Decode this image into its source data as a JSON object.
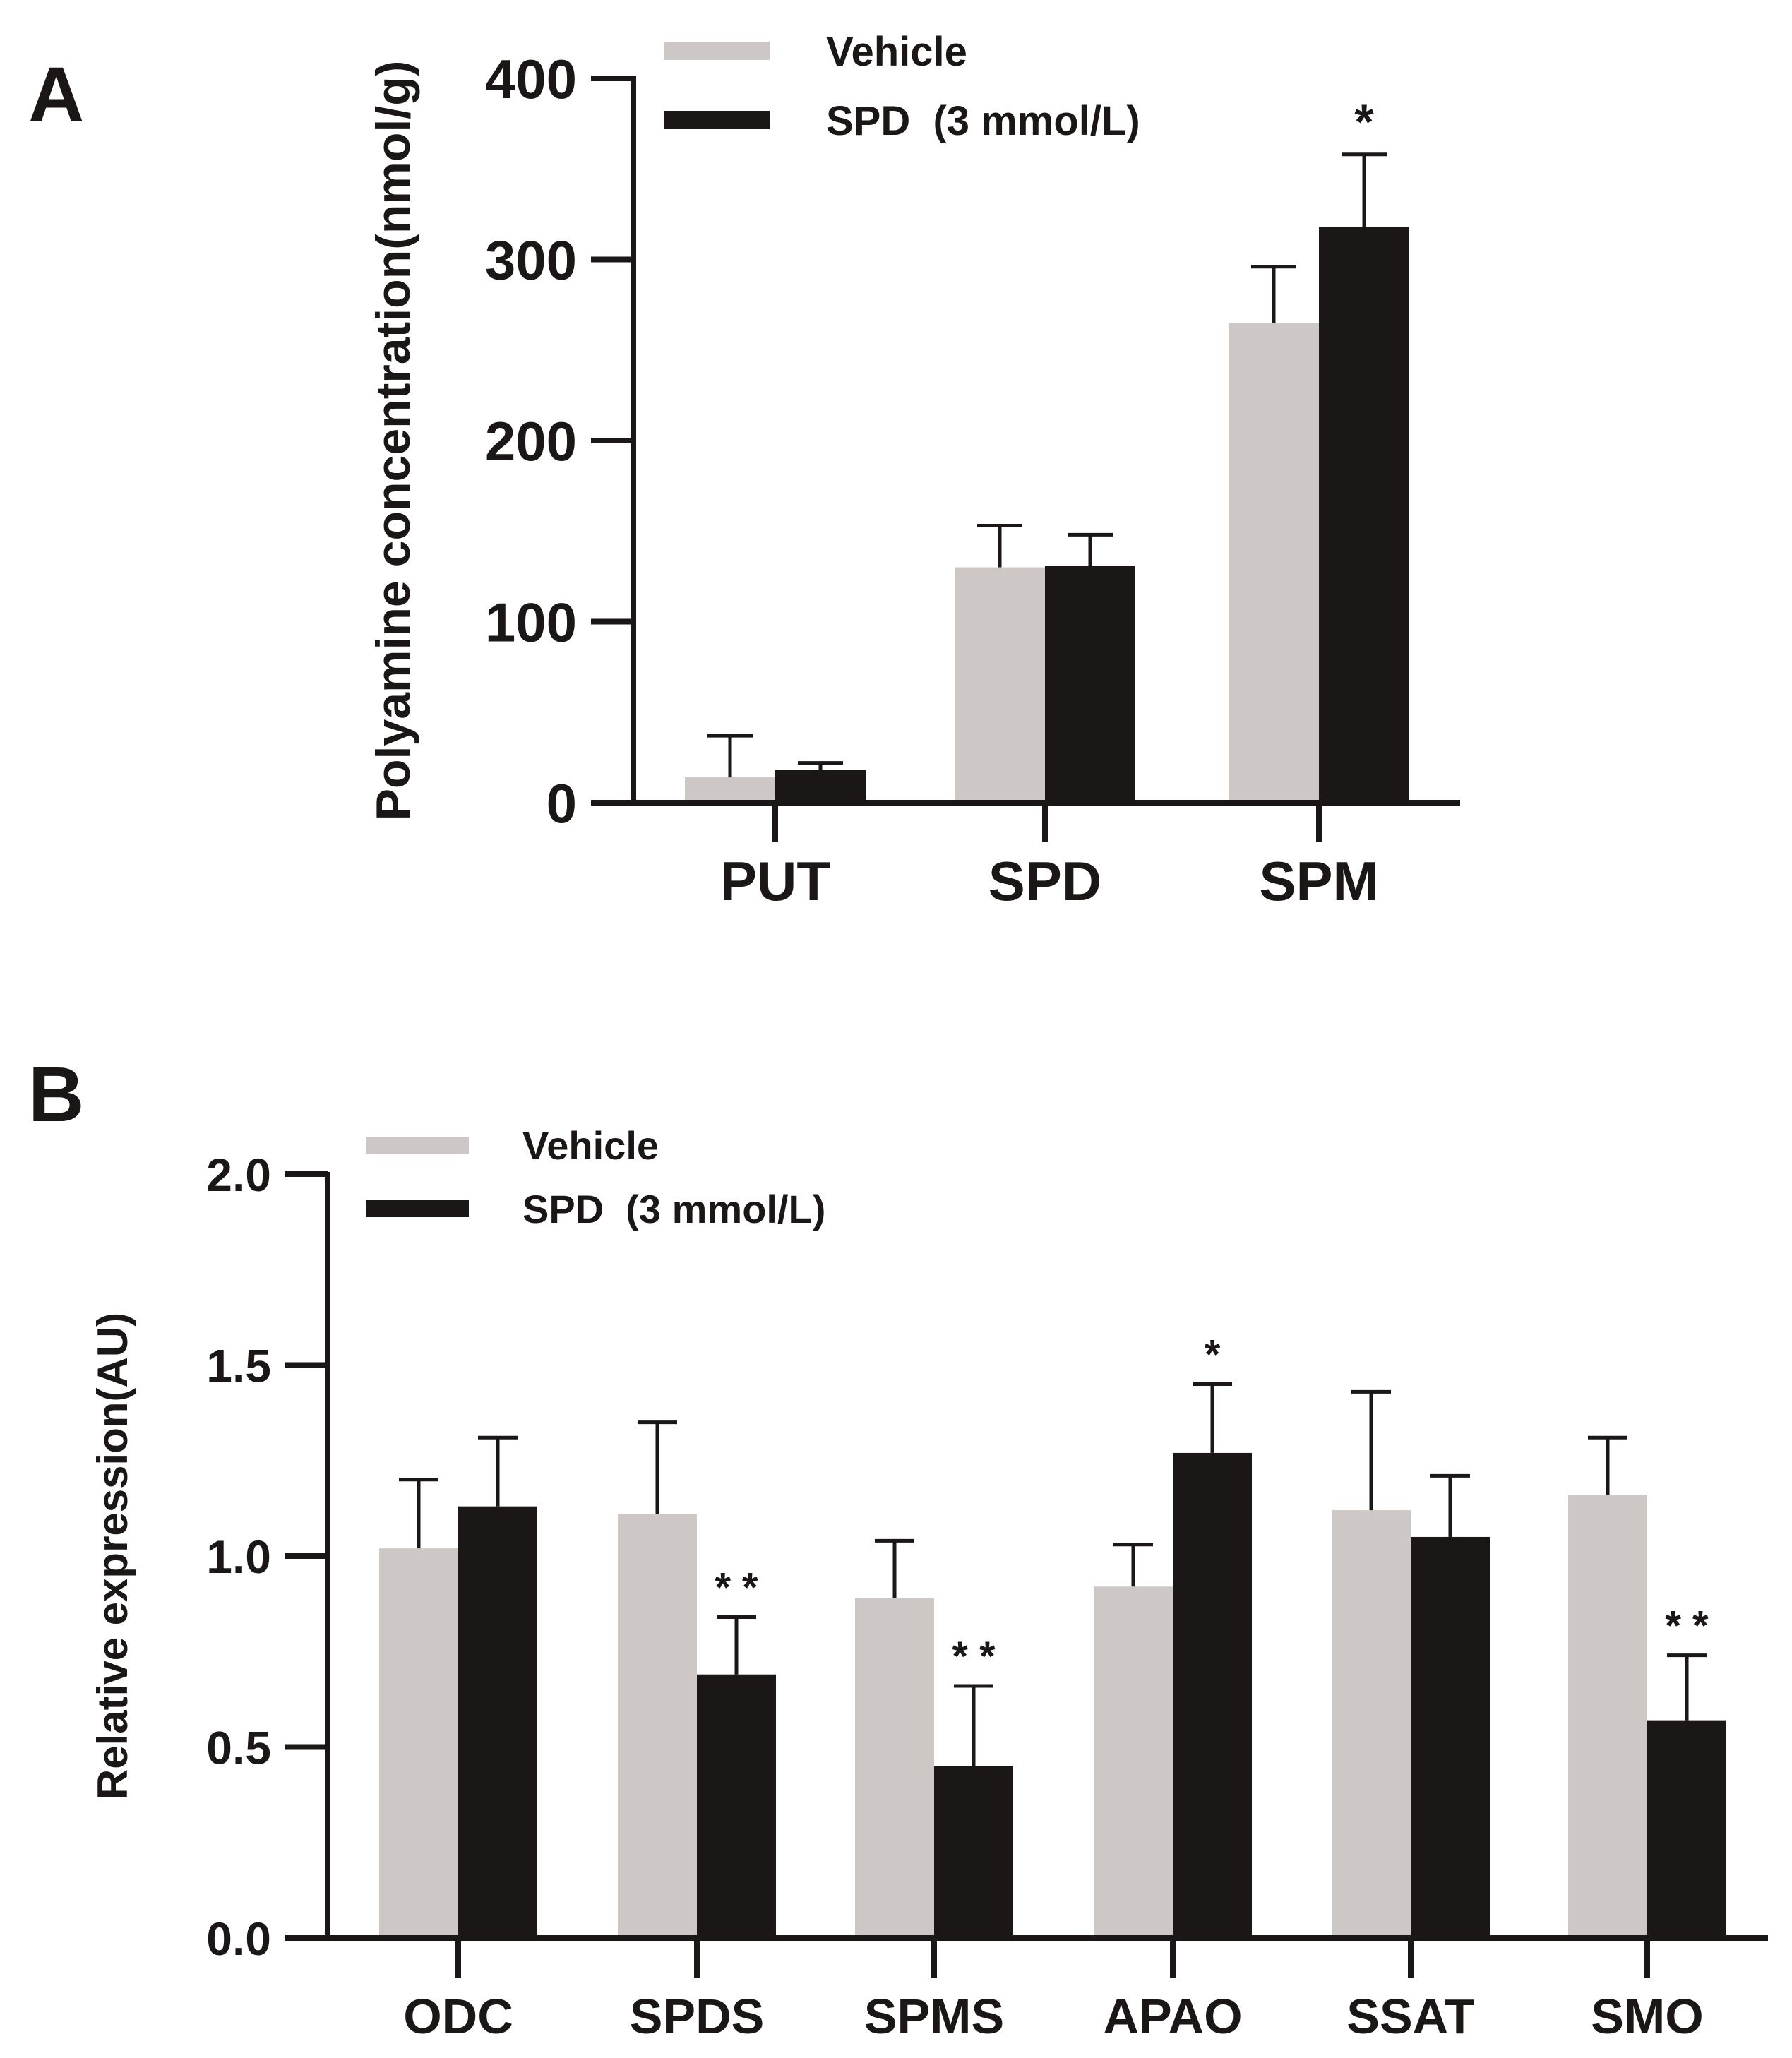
{
  "colors": {
    "vehicle": "#cdc7c6",
    "spd": "#1a1716",
    "axis": "#1a1716",
    "text": "#1a1716"
  },
  "chart_data": [
    {
      "panel": "A",
      "type": "bar",
      "title": "",
      "xlabel": "",
      "ylabel": "Polyamine concentration(nmol/g)",
      "ylim": [
        0,
        400
      ],
      "yticks": [
        "0",
        "100",
        "200",
        "300",
        "400"
      ],
      "yticks_values": [
        0,
        100,
        200,
        300,
        400
      ],
      "categories": [
        "PUT",
        "SPD",
        "SPM"
      ],
      "legend_position": "top",
      "series": [
        {
          "name": "Vehicle",
          "values": [
            14,
            130,
            265
          ],
          "errors": [
            23,
            23,
            31
          ]
        },
        {
          "name": "SPD  (3 mmol/L)",
          "values": [
            18,
            131,
            318
          ],
          "errors": [
            4,
            17,
            40
          ]
        }
      ],
      "annotations": [
        {
          "category": "SPM",
          "series": 1,
          "text": "*"
        }
      ]
    },
    {
      "panel": "B",
      "type": "bar",
      "title": "",
      "xlabel": "",
      "ylabel": "Relative expression(AU)",
      "ylim": [
        0,
        2
      ],
      "yticks": [
        "0.0",
        "0.5",
        "1.0",
        "1.5",
        "2.0"
      ],
      "yticks_values": [
        0,
        0.5,
        1,
        1.5,
        2
      ],
      "categories": [
        "ODC",
        "SPDS",
        "SPMS",
        "APAO",
        "SSAT",
        "SMO"
      ],
      "legend_position": "top-left",
      "series": [
        {
          "name": "Vehicle",
          "values": [
            1.02,
            1.11,
            0.89,
            0.92,
            1.12,
            1.16
          ],
          "errors": [
            0.18,
            0.24,
            0.15,
            0.11,
            0.31,
            0.15
          ]
        },
        {
          "name": "SPD  (3 mmol/L)",
          "values": [
            1.13,
            0.69,
            0.45,
            1.27,
            1.05,
            0.57
          ],
          "errors": [
            0.18,
            0.15,
            0.21,
            0.18,
            0.16,
            0.17
          ]
        }
      ],
      "annotations": [
        {
          "category": "SPDS",
          "series": 1,
          "text": "* *"
        },
        {
          "category": "SPMS",
          "series": 1,
          "text": "* *"
        },
        {
          "category": "APAO",
          "series": 1,
          "text": "*"
        },
        {
          "category": "SMO",
          "series": 1,
          "text": "* *"
        }
      ]
    }
  ],
  "panel_labels": [
    "A",
    "B"
  ]
}
